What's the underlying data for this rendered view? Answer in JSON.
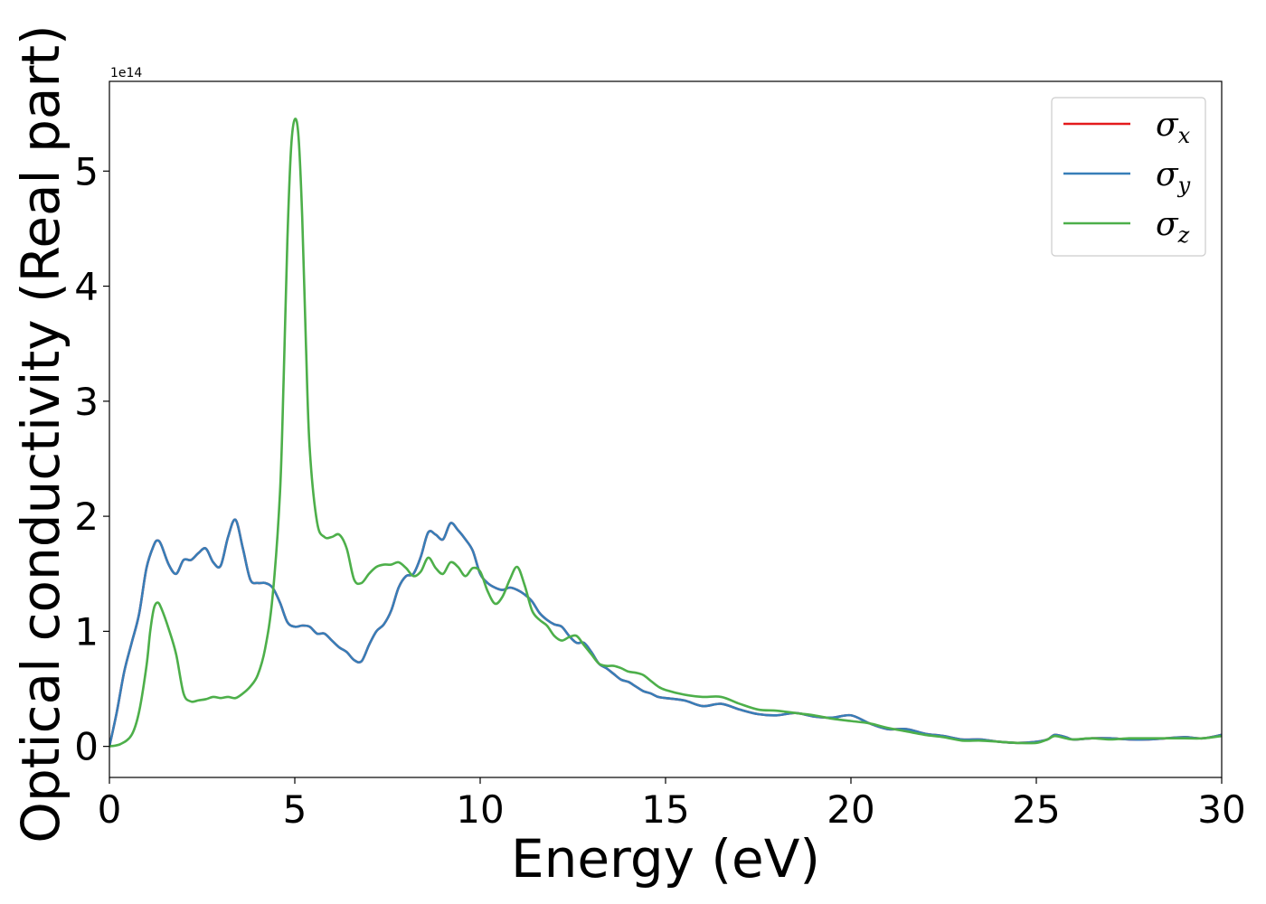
{
  "chart_data": {
    "type": "line",
    "xlabel": "Energy (eV)",
    "ylabel": "Optical conductivity (Real part)",
    "offset_text": "1e14",
    "xlim": [
      0,
      30
    ],
    "ylim": [
      -0.27,
      5.78
    ],
    "xticks": [
      0,
      5,
      10,
      15,
      20,
      25,
      30
    ],
    "yticks": [
      0,
      1,
      2,
      3,
      4,
      5
    ],
    "y_unit_multiplier": 100000000000000.0,
    "grid": false,
    "legend_position": "top-right",
    "series": [
      {
        "name": "x",
        "color": "#e41a1c",
        "x": [
          0,
          0.2,
          0.4,
          0.6,
          0.8,
          1.0,
          1.2,
          1.3,
          1.4,
          1.6,
          1.8,
          2.0,
          2.2,
          2.4,
          2.6,
          2.8,
          3.0,
          3.2,
          3.4,
          3.6,
          3.8,
          4.0,
          4.2,
          4.4,
          4.6,
          4.8,
          5.0,
          5.2,
          5.4,
          5.6,
          5.8,
          6.0,
          6.2,
          6.4,
          6.6,
          6.8,
          7.0,
          7.2,
          7.4,
          7.6,
          7.8,
          8.0,
          8.2,
          8.4,
          8.6,
          8.8,
          9.0,
          9.2,
          9.4,
          9.6,
          9.8,
          10.0,
          10.2,
          10.4,
          10.6,
          10.8,
          11.0,
          11.2,
          11.4,
          11.6,
          11.8,
          12.0,
          12.2,
          12.4,
          12.6,
          12.8,
          13.0,
          13.2,
          13.4,
          13.6,
          13.8,
          14.0,
          14.2,
          14.4,
          14.6,
          14.8,
          15.0,
          15.5,
          16.0,
          16.5,
          17.0,
          17.5,
          18.0,
          18.5,
          19.0,
          19.5,
          20.0,
          20.5,
          21.0,
          21.5,
          22.0,
          22.5,
          23.0,
          23.5,
          24.0,
          24.5,
          25.0,
          25.3,
          25.5,
          25.8,
          26.0,
          26.5,
          27.0,
          27.5,
          28.0,
          28.5,
          29.0,
          29.5,
          30.0
        ],
        "y": [
          0.0,
          0.3,
          0.65,
          0.9,
          1.15,
          1.55,
          1.75,
          1.79,
          1.75,
          1.58,
          1.5,
          1.62,
          1.62,
          1.68,
          1.72,
          1.6,
          1.57,
          1.82,
          1.97,
          1.72,
          1.45,
          1.42,
          1.42,
          1.38,
          1.25,
          1.08,
          1.04,
          1.05,
          1.04,
          0.98,
          0.98,
          0.92,
          0.86,
          0.82,
          0.75,
          0.74,
          0.88,
          1.0,
          1.06,
          1.18,
          1.38,
          1.48,
          1.5,
          1.65,
          1.86,
          1.84,
          1.8,
          1.94,
          1.88,
          1.8,
          1.7,
          1.5,
          1.42,
          1.38,
          1.36,
          1.38,
          1.36,
          1.32,
          1.26,
          1.16,
          1.1,
          1.06,
          1.04,
          0.96,
          0.9,
          0.9,
          0.82,
          0.72,
          0.68,
          0.63,
          0.58,
          0.56,
          0.52,
          0.48,
          0.46,
          0.43,
          0.42,
          0.4,
          0.35,
          0.37,
          0.32,
          0.28,
          0.27,
          0.29,
          0.26,
          0.25,
          0.27,
          0.2,
          0.15,
          0.15,
          0.11,
          0.09,
          0.06,
          0.06,
          0.04,
          0.03,
          0.04,
          0.06,
          0.1,
          0.08,
          0.06,
          0.07,
          0.07,
          0.06,
          0.06,
          0.07,
          0.08,
          0.07,
          0.1
        ]
      },
      {
        "name": "y",
        "color": "#377eb8",
        "x": [
          0,
          0.2,
          0.4,
          0.6,
          0.8,
          1.0,
          1.2,
          1.3,
          1.4,
          1.6,
          1.8,
          2.0,
          2.2,
          2.4,
          2.6,
          2.8,
          3.0,
          3.2,
          3.4,
          3.6,
          3.8,
          4.0,
          4.2,
          4.4,
          4.6,
          4.8,
          5.0,
          5.2,
          5.4,
          5.6,
          5.8,
          6.0,
          6.2,
          6.4,
          6.6,
          6.8,
          7.0,
          7.2,
          7.4,
          7.6,
          7.8,
          8.0,
          8.2,
          8.4,
          8.6,
          8.8,
          9.0,
          9.2,
          9.4,
          9.6,
          9.8,
          10.0,
          10.2,
          10.4,
          10.6,
          10.8,
          11.0,
          11.2,
          11.4,
          11.6,
          11.8,
          12.0,
          12.2,
          12.4,
          12.6,
          12.8,
          13.0,
          13.2,
          13.4,
          13.6,
          13.8,
          14.0,
          14.2,
          14.4,
          14.6,
          14.8,
          15.0,
          15.5,
          16.0,
          16.5,
          17.0,
          17.5,
          18.0,
          18.5,
          19.0,
          19.5,
          20.0,
          20.5,
          21.0,
          21.5,
          22.0,
          22.5,
          23.0,
          23.5,
          24.0,
          24.5,
          25.0,
          25.3,
          25.5,
          25.8,
          26.0,
          26.5,
          27.0,
          27.5,
          28.0,
          28.5,
          29.0,
          29.5,
          30.0
        ],
        "y": [
          0.0,
          0.3,
          0.65,
          0.9,
          1.15,
          1.55,
          1.75,
          1.79,
          1.75,
          1.58,
          1.5,
          1.62,
          1.62,
          1.68,
          1.72,
          1.6,
          1.57,
          1.82,
          1.97,
          1.72,
          1.45,
          1.42,
          1.42,
          1.38,
          1.25,
          1.08,
          1.04,
          1.05,
          1.04,
          0.98,
          0.98,
          0.92,
          0.86,
          0.82,
          0.75,
          0.74,
          0.88,
          1.0,
          1.06,
          1.18,
          1.38,
          1.48,
          1.5,
          1.65,
          1.86,
          1.84,
          1.8,
          1.94,
          1.88,
          1.8,
          1.7,
          1.5,
          1.42,
          1.38,
          1.36,
          1.38,
          1.36,
          1.32,
          1.26,
          1.16,
          1.1,
          1.06,
          1.04,
          0.96,
          0.9,
          0.9,
          0.82,
          0.72,
          0.68,
          0.63,
          0.58,
          0.56,
          0.52,
          0.48,
          0.46,
          0.43,
          0.42,
          0.4,
          0.35,
          0.37,
          0.32,
          0.28,
          0.27,
          0.29,
          0.26,
          0.25,
          0.27,
          0.2,
          0.15,
          0.15,
          0.11,
          0.09,
          0.06,
          0.06,
          0.04,
          0.03,
          0.04,
          0.06,
          0.1,
          0.08,
          0.06,
          0.07,
          0.07,
          0.06,
          0.06,
          0.07,
          0.08,
          0.07,
          0.1
        ]
      },
      {
        "name": "z",
        "color": "#4daf4a",
        "x": [
          0,
          0.3,
          0.6,
          0.8,
          1.0,
          1.1,
          1.2,
          1.3,
          1.4,
          1.6,
          1.8,
          2.0,
          2.2,
          2.4,
          2.6,
          2.8,
          3.0,
          3.2,
          3.4,
          3.6,
          3.8,
          4.0,
          4.2,
          4.4,
          4.6,
          4.7,
          4.8,
          4.9,
          5.0,
          5.1,
          5.2,
          5.3,
          5.4,
          5.6,
          5.8,
          6.0,
          6.2,
          6.4,
          6.6,
          6.8,
          7.0,
          7.2,
          7.4,
          7.6,
          7.8,
          8.0,
          8.2,
          8.4,
          8.6,
          8.8,
          9.0,
          9.2,
          9.4,
          9.6,
          9.8,
          10.0,
          10.2,
          10.4,
          10.6,
          10.8,
          11.0,
          11.2,
          11.4,
          11.6,
          11.8,
          12.0,
          12.2,
          12.4,
          12.6,
          12.8,
          13.0,
          13.2,
          13.4,
          13.6,
          13.8,
          14.0,
          14.2,
          14.4,
          14.6,
          14.8,
          15.0,
          15.5,
          16.0,
          16.5,
          17.0,
          17.5,
          18.0,
          18.5,
          19.0,
          19.5,
          20.0,
          20.5,
          21.0,
          21.5,
          22.0,
          22.5,
          23.0,
          23.5,
          24.0,
          24.5,
          25.0,
          25.3,
          25.5,
          25.8,
          26.0,
          26.5,
          27.0,
          27.5,
          28.0,
          28.5,
          29.0,
          29.5,
          30.0
        ],
        "y": [
          0.0,
          0.02,
          0.1,
          0.3,
          0.7,
          1.0,
          1.2,
          1.25,
          1.2,
          1.02,
          0.8,
          0.46,
          0.39,
          0.4,
          0.41,
          0.43,
          0.42,
          0.43,
          0.42,
          0.46,
          0.52,
          0.62,
          0.85,
          1.3,
          2.2,
          3.2,
          4.4,
          5.2,
          5.45,
          5.3,
          4.6,
          3.5,
          2.6,
          1.95,
          1.82,
          1.82,
          1.84,
          1.72,
          1.45,
          1.42,
          1.5,
          1.56,
          1.58,
          1.58,
          1.6,
          1.55,
          1.48,
          1.52,
          1.64,
          1.55,
          1.5,
          1.6,
          1.56,
          1.48,
          1.55,
          1.52,
          1.35,
          1.24,
          1.3,
          1.45,
          1.56,
          1.4,
          1.18,
          1.1,
          1.05,
          0.96,
          0.92,
          0.95,
          0.96,
          0.88,
          0.8,
          0.72,
          0.7,
          0.7,
          0.68,
          0.65,
          0.64,
          0.62,
          0.57,
          0.52,
          0.49,
          0.45,
          0.43,
          0.43,
          0.37,
          0.32,
          0.31,
          0.29,
          0.27,
          0.24,
          0.22,
          0.2,
          0.16,
          0.13,
          0.1,
          0.08,
          0.05,
          0.05,
          0.04,
          0.03,
          0.03,
          0.06,
          0.09,
          0.07,
          0.06,
          0.07,
          0.06,
          0.07,
          0.07,
          0.07,
          0.07,
          0.07,
          0.09
        ]
      }
    ]
  }
}
